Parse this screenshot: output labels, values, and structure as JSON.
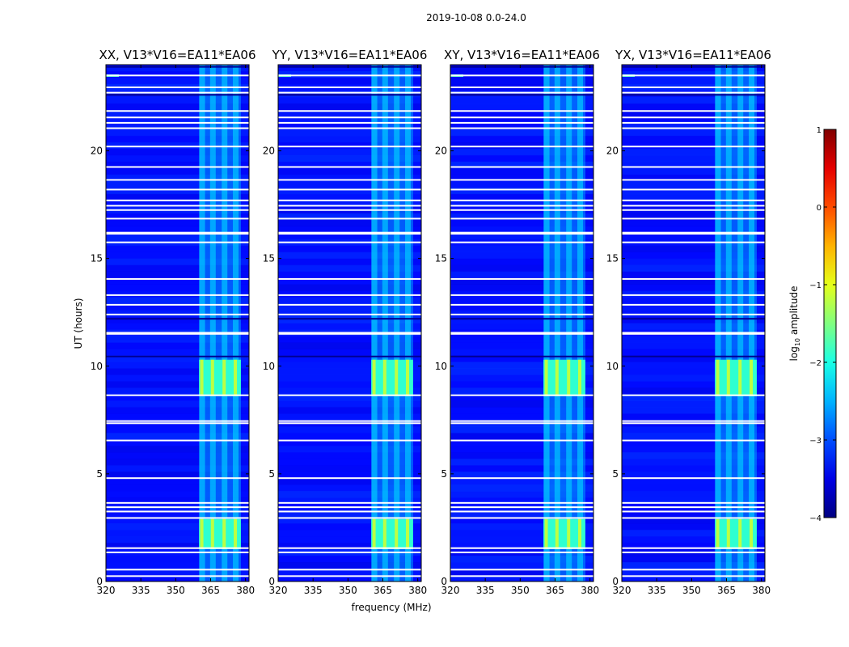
{
  "figure": {
    "suptitle": "2019-10-08 0.0-24.0"
  },
  "chart_data": {
    "type": "heatmap",
    "xlabel": "frequency (MHz)",
    "ylabel": "UT (hours)",
    "xlim": [
      320,
      381.5
    ],
    "ylim": [
      0,
      24
    ],
    "xticks": [
      "320",
      "335",
      "350",
      "365",
      "380"
    ],
    "xtick_values": [
      320,
      335,
      350,
      365,
      380
    ],
    "yticks": [
      "0",
      "5",
      "10",
      "15",
      "20"
    ],
    "ytick_values": [
      0,
      5,
      10,
      15,
      20
    ],
    "panels": [
      {
        "title": "XX, V13*V16=EA11*EA06",
        "rfi_low": 360,
        "rfi_high": 378
      },
      {
        "title": "YY, V13*V16=EA11*EA06",
        "rfi_low": 360,
        "rfi_high": 378
      },
      {
        "title": "XY, V13*V16=EA11*EA06",
        "rfi_low": 360,
        "rfi_high": 378
      },
      {
        "title": "YX, V13*V16=EA11*EA06",
        "rfi_low": 360,
        "rfi_high": 378
      }
    ],
    "rfi_channels_mhz": [
      361.2,
      365.8,
      370.8,
      375.6
    ],
    "background_log_amplitude": -3.3,
    "strong_rfi_periods_hours": [
      [
        1.5,
        2.9
      ],
      [
        8.6,
        10.3
      ]
    ],
    "flagged_hours": [
      0.25,
      0.55,
      1.35,
      1.55,
      2.95,
      3.25,
      3.45,
      3.65,
      4.8,
      6.55,
      7.35,
      7.45,
      8.65,
      11.5,
      11.55,
      12.4,
      12.85,
      13.3,
      14.05,
      15.75,
      16.15,
      16.2,
      16.85,
      17.25,
      17.45,
      17.7,
      18.2,
      18.65,
      19.25,
      20.2,
      21.05,
      21.3,
      21.55,
      21.85,
      22.7,
      22.95,
      23.5
    ],
    "colorbar": {
      "label": "log10 amplitude",
      "label_main": "log",
      "label_sub": "10",
      "label_rest": " amplitude",
      "range": [
        -4,
        1
      ],
      "ticks": [
        "1",
        "0",
        "−1",
        "−2",
        "−3",
        "−4"
      ],
      "tick_values": [
        1,
        0,
        -1,
        -2,
        -3,
        -4
      ],
      "colormap": "jet"
    }
  }
}
